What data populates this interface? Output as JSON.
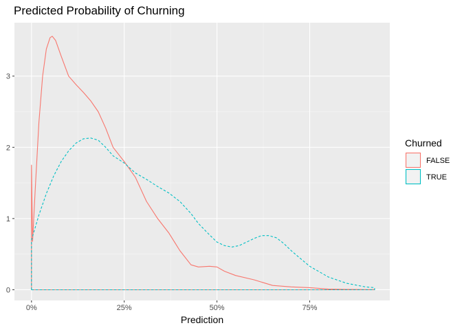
{
  "chart_data": {
    "type": "area",
    "title": "Predicted Probability of Churning",
    "xlabel": "Prediction",
    "ylabel": "",
    "xlim": [
      -0.046,
      0.966
    ],
    "ylim": [
      -0.15,
      3.75
    ],
    "x_ticks": [
      0,
      0.25,
      0.5,
      0.75
    ],
    "x_tick_labels": [
      "0%",
      "25%",
      "50%",
      "75%"
    ],
    "y_ticks": [
      0,
      1,
      2,
      3
    ],
    "y_tick_labels": [
      "0",
      "1",
      "2",
      "3"
    ],
    "grid": true,
    "legend": {
      "title": "Churned",
      "position": "right"
    },
    "series": [
      {
        "name": "FALSE",
        "color": "#F8766D",
        "linestyle": "solid",
        "x": [
          0.0,
          0.003,
          0.01,
          0.02,
          0.03,
          0.04,
          0.05,
          0.056,
          0.065,
          0.08,
          0.1,
          0.12,
          0.14,
          0.16,
          0.18,
          0.2,
          0.22,
          0.25,
          0.28,
          0.31,
          0.34,
          0.37,
          0.4,
          0.43,
          0.45,
          0.48,
          0.5,
          0.52,
          0.55,
          0.6,
          0.65,
          0.7,
          0.75,
          0.8,
          0.85,
          0.9,
          0.925
        ],
        "values": [
          1.75,
          0.68,
          1.4,
          2.35,
          3.0,
          3.38,
          3.54,
          3.56,
          3.5,
          3.28,
          3.0,
          2.88,
          2.77,
          2.65,
          2.5,
          2.27,
          2.0,
          1.8,
          1.58,
          1.24,
          1.0,
          0.8,
          0.55,
          0.35,
          0.32,
          0.33,
          0.32,
          0.26,
          0.2,
          0.14,
          0.06,
          0.04,
          0.03,
          0.01,
          0.005,
          0.003,
          0.002
        ]
      },
      {
        "name": "TRUE",
        "color": "#00BFC4",
        "linestyle": "dashed",
        "x": [
          0.0,
          0.003,
          0.02,
          0.04,
          0.06,
          0.08,
          0.1,
          0.12,
          0.14,
          0.16,
          0.18,
          0.2,
          0.22,
          0.25,
          0.28,
          0.31,
          0.34,
          0.37,
          0.4,
          0.43,
          0.45,
          0.48,
          0.5,
          0.52,
          0.54,
          0.56,
          0.58,
          0.6,
          0.62,
          0.64,
          0.66,
          0.68,
          0.7,
          0.72,
          0.75,
          0.8,
          0.85,
          0.9,
          0.925
        ],
        "values": [
          0.7,
          0.75,
          1.05,
          1.35,
          1.6,
          1.8,
          1.95,
          2.06,
          2.12,
          2.13,
          2.1,
          2.0,
          1.88,
          1.78,
          1.64,
          1.55,
          1.45,
          1.36,
          1.24,
          1.07,
          0.93,
          0.77,
          0.67,
          0.62,
          0.6,
          0.62,
          0.67,
          0.72,
          0.76,
          0.76,
          0.73,
          0.65,
          0.55,
          0.46,
          0.33,
          0.18,
          0.09,
          0.04,
          0.03
        ]
      }
    ]
  }
}
